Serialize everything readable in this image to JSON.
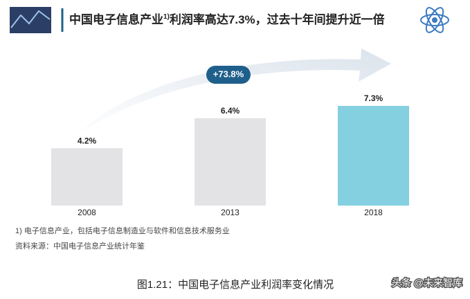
{
  "chart_data": {
    "type": "bar",
    "title": [
      "中国电子信息产业",
      "1)",
      "利润率高达7.3%，过去十年间提升近一倍"
    ],
    "categories": [
      "2008",
      "2013",
      "2018"
    ],
    "values": [
      4.2,
      6.4,
      7.3
    ],
    "value_labels": [
      "4.2%",
      "6.4%",
      "7.3%"
    ],
    "colors": [
      "#e3e3e6",
      "#e3e3e6",
      "#84cfe0"
    ],
    "annotation": "+73.8%",
    "footnote": "1) 电子信息产业，包括电子信息制造业与软件和信息技术服务业",
    "source": "资料来源：中国电子信息产业统计年鉴",
    "caption": "图1.21：中国电子信息产业利润率变化情况",
    "watermark": "头条 @未来智库"
  }
}
